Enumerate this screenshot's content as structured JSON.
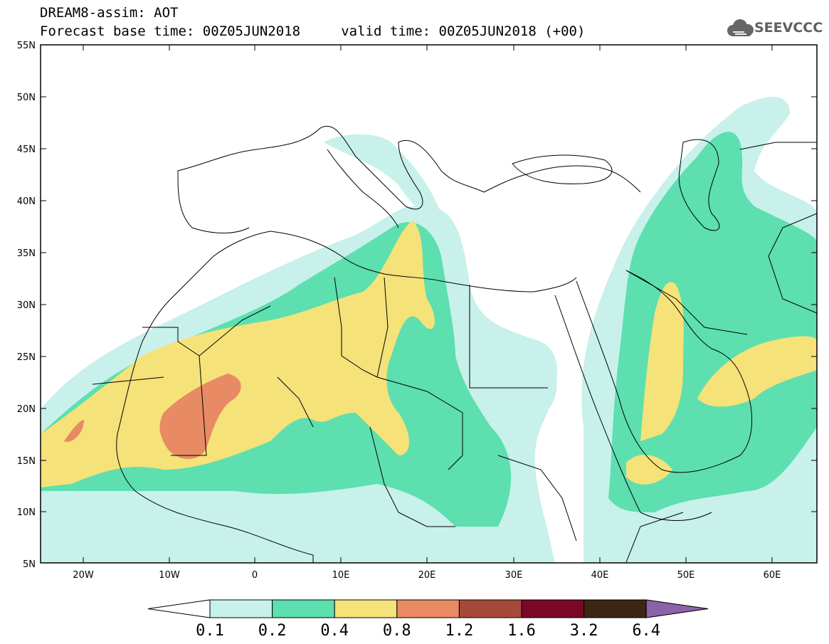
{
  "header": {
    "title_line1": "DREAM8-assim: AOT",
    "title_line2": "Forecast base time: 00Z05JUN2018     valid time: 00Z05JUN2018 (+00)",
    "logo_text": "SEEVCCC"
  },
  "map": {
    "lon_range": [
      -25,
      65
    ],
    "lat_range": [
      5,
      55
    ],
    "lat_labels": [
      "55N",
      "50N",
      "45N",
      "40N",
      "35N",
      "30N",
      "25N",
      "20N",
      "15N",
      "10N",
      "5N"
    ],
    "lon_labels": [
      "20W",
      "10W",
      "0",
      "10E",
      "20E",
      "30E",
      "40E",
      "50E",
      "60E"
    ],
    "field": "AOT",
    "colors": {
      "0.1-0.2": "#c7f1ea",
      "0.2-0.4": "#5ddfb0",
      "0.4-0.8": "#f5e279",
      "0.8-1.2": "#e88a63",
      "1.2-1.6": "#a54a3b",
      "1.6-3.2": "#7a0826",
      "3.2-6.4": "#3d2613",
      "above": "#8c62a8"
    }
  },
  "colorbar": {
    "labels": [
      "0.1",
      "0.2",
      "0.4",
      "0.8",
      "1.2",
      "1.6",
      "3.2",
      "6.4"
    ],
    "colors": [
      "#c7f1ea",
      "#5ddfb0",
      "#f5e279",
      "#e88a63",
      "#a54a3b",
      "#7a0826",
      "#3d2613"
    ],
    "low_end_color": "#ffffff",
    "high_end_color": "#8c62a8"
  }
}
